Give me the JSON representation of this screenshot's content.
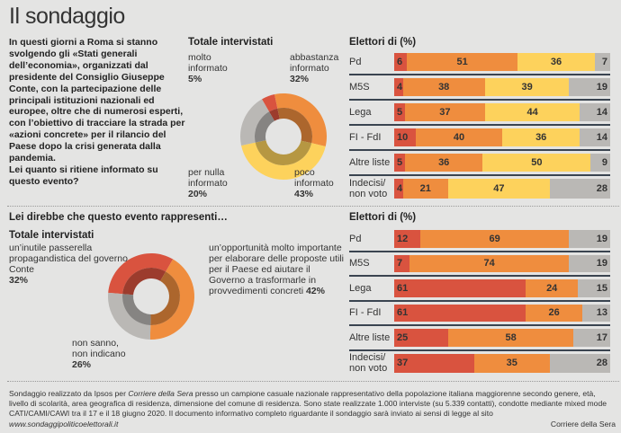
{
  "title": "Il sondaggio",
  "intro": "In questi giorni a Roma si stanno svolgendo gli «Stati generali dell’economia», organizzati dal presidente del Consiglio Giuseppe Conte, con la partecipazione delle principali istituzioni nazionali ed europee, oltre che di numerosi esperti, con l’obiettivo di tracciare la strada per «azioni concrete» per il rilancio del Paese dopo la crisi generata dalla pandemia.",
  "question1": "Lei quanto si ritiene informato su questo evento?",
  "question2": "Lei direbbe che questo evento rappresenti…",
  "colors": {
    "red": "#d9533f",
    "orange": "#ef8d3e",
    "yellow": "#fdd25c",
    "gray": "#bab8b5"
  },
  "chart_data": [
    {
      "type": "pie",
      "title": "Totale intervistati",
      "slices": [
        {
          "label": "molto informato",
          "value": 5,
          "pct": "5%",
          "color": "red"
        },
        {
          "label": "abbastanza informato",
          "value": 32,
          "pct": "32%",
          "color": "orange"
        },
        {
          "label": "poco informato",
          "value": 43,
          "pct": "43%",
          "color": "yellow"
        },
        {
          "label": "per nulla informato",
          "value": 20,
          "pct": "20%",
          "color": "gray"
        }
      ]
    },
    {
      "type": "bar",
      "stacked": true,
      "title": "Elettori di (%)",
      "categories": [
        "Pd",
        "M5S",
        "Lega",
        "FI - FdI",
        "Altre liste",
        "Indecisi/ non voto"
      ],
      "series": [
        {
          "color": "red",
          "values": [
            6,
            4,
            5,
            10,
            5,
            4
          ]
        },
        {
          "color": "orange",
          "values": [
            51,
            38,
            37,
            40,
            36,
            21
          ]
        },
        {
          "color": "yellow",
          "values": [
            36,
            39,
            44,
            36,
            50,
            47
          ]
        },
        {
          "color": "gray",
          "values": [
            7,
            19,
            14,
            14,
            9,
            28
          ]
        }
      ]
    },
    {
      "type": "pie",
      "title": "Totale intervistati",
      "slices": [
        {
          "label": "un’inutile passerella propagandistica del governo Conte",
          "value": 32,
          "pct": "32%",
          "color": "red"
        },
        {
          "label": "un’opportunità molto importante per elaborare delle proposte utili per il Paese ed aiutare il Governo a trasformarle in provvedimenti concreti",
          "value": 42,
          "pct": "42%",
          "color": "orange"
        },
        {
          "label": "non sanno, non indicano",
          "value": 26,
          "pct": "26%",
          "color": "gray"
        }
      ]
    },
    {
      "type": "bar",
      "stacked": true,
      "title": "Elettori di (%)",
      "categories": [
        "Pd",
        "M5S",
        "Lega",
        "FI - FdI",
        "Altre liste",
        "Indecisi/ non voto"
      ],
      "series": [
        {
          "color": "red",
          "values": [
            12,
            7,
            61,
            61,
            25,
            37
          ]
        },
        {
          "color": "orange",
          "values": [
            69,
            74,
            24,
            26,
            58,
            35
          ]
        },
        {
          "color": "gray",
          "values": [
            19,
            19,
            15,
            13,
            17,
            28
          ]
        }
      ]
    }
  ],
  "footer": {
    "text1": "Sondaggio realizzato da Ipsos per ",
    "italic": "Corriere della Sera",
    "text2": " presso un campione casuale nazionale rappresentativo della popolazione italiana maggiorenne secondo genere, età, livello di scolarità, area geografica di residenza, dimensione del comune di residenza. Sono state realizzate 1.000 interviste (su 5.339 contatti), condotte mediante mixed mode CATI/CAMI/CAWI tra il 17 e il 18 giugno 2020. Il documento informativo completo riguardante il sondaggio sarà inviato ai sensi di legge al sito ",
    "url": "www.sondaggipoliticoelettorali.it",
    "source": "Corriere della Sera"
  }
}
